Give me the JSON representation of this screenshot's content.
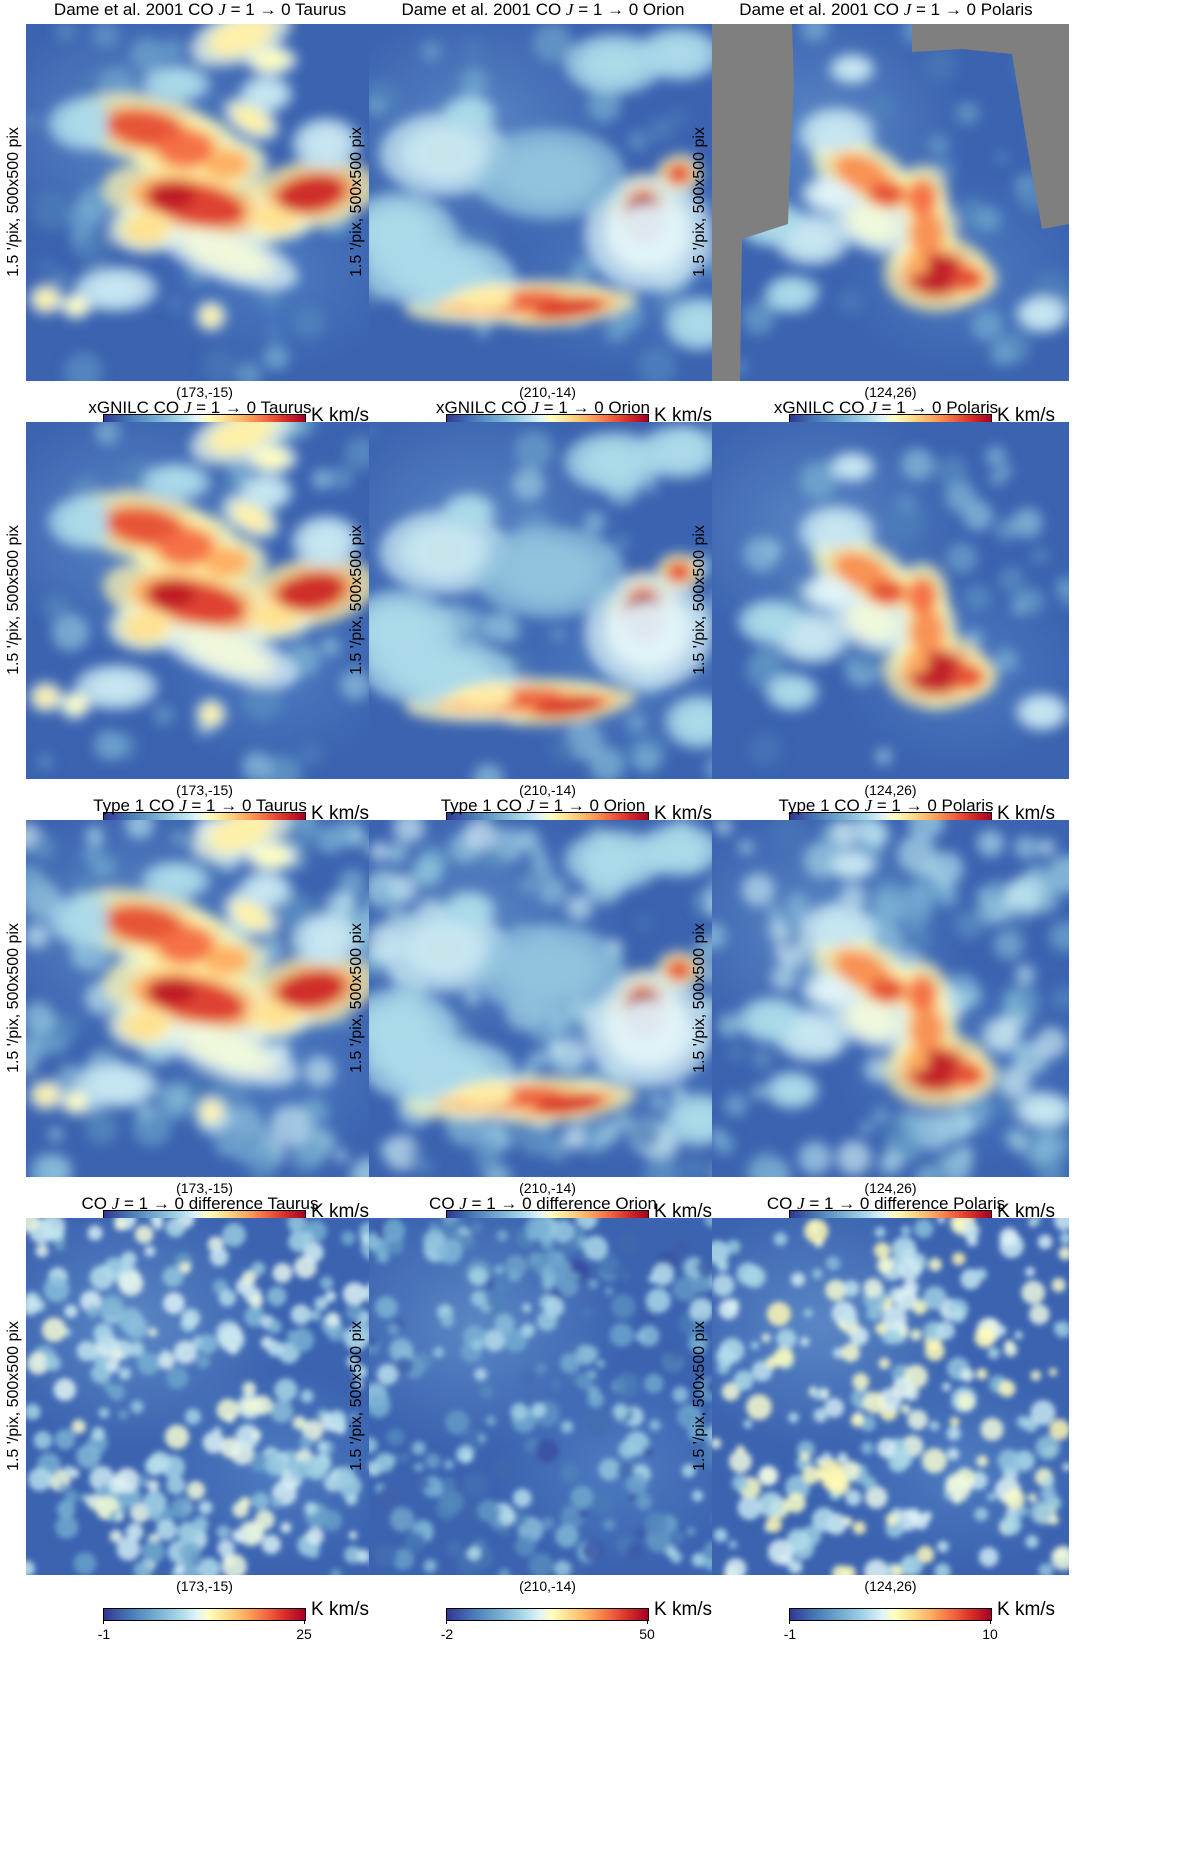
{
  "figure": {
    "rows": [
      {
        "label": "Dame et al. 2001",
        "panels": [
          {
            "title_prefix": "Dame et al. 2001 CO ",
            "title_suffix": " Taurus",
            "center": "(173,-15)",
            "min": "-1",
            "max": "25"
          },
          {
            "title_prefix": "Dame et al. 2001 CO ",
            "title_suffix": " Orion",
            "center": "(210,-14)",
            "min": "-2",
            "max": "50"
          },
          {
            "title_prefix": "Dame et al. 2001 CO ",
            "title_suffix": " Polaris",
            "center": "(124,26)",
            "min": "-1",
            "max": "10"
          }
        ]
      },
      {
        "label": "xGNILC",
        "panels": [
          {
            "title_prefix": "xGNILC CO ",
            "title_suffix": " Taurus",
            "center": "(173,-15)",
            "min": "-1",
            "max": "25"
          },
          {
            "title_prefix": "xGNILC CO ",
            "title_suffix": " Orion",
            "center": "(210,-14)",
            "min": "-2",
            "max": "50"
          },
          {
            "title_prefix": "xGNILC CO ",
            "title_suffix": " Polaris",
            "center": "(124,26)",
            "min": "-1",
            "max": "10"
          }
        ]
      },
      {
        "label": "Type 1",
        "panels": [
          {
            "title_prefix": "Type 1 CO ",
            "title_suffix": " Taurus",
            "center": "(173,-15)",
            "min": "-1",
            "max": "25"
          },
          {
            "title_prefix": "Type 1 CO ",
            "title_suffix": " Orion",
            "center": "(210,-14)",
            "min": "-2",
            "max": "50"
          },
          {
            "title_prefix": "Type 1 CO ",
            "title_suffix": " Polaris",
            "center": "(124,26)",
            "min": "-1",
            "max": "10"
          }
        ]
      },
      {
        "label": "difference",
        "panels": [
          {
            "title_prefix": "CO ",
            "title_suffix": " difference Taurus",
            "center": "(173,-15)",
            "min": "-1",
            "max": "25"
          },
          {
            "title_prefix": "CO ",
            "title_suffix": " difference Orion",
            "center": "(210,-14)",
            "min": "-2",
            "max": "50"
          },
          {
            "title_prefix": "CO ",
            "title_suffix": " difference Polaris",
            "center": "(124,26)",
            "min": "-1",
            "max": "10"
          }
        ]
      }
    ],
    "transition_J": "J",
    "transition_rest": " = 1 → 0",
    "ylabel": "1.5 '/pix,   500x500 pix",
    "cbar_unit": "K km/s",
    "colormap": [
      "#313695",
      "#4575b4",
      "#74add1",
      "#abd9e9",
      "#e0f3f8",
      "#ffffbf",
      "#fee090",
      "#fdae61",
      "#f46d43",
      "#d73027",
      "#a50026"
    ],
    "masked_color": "#7f7f7f"
  }
}
